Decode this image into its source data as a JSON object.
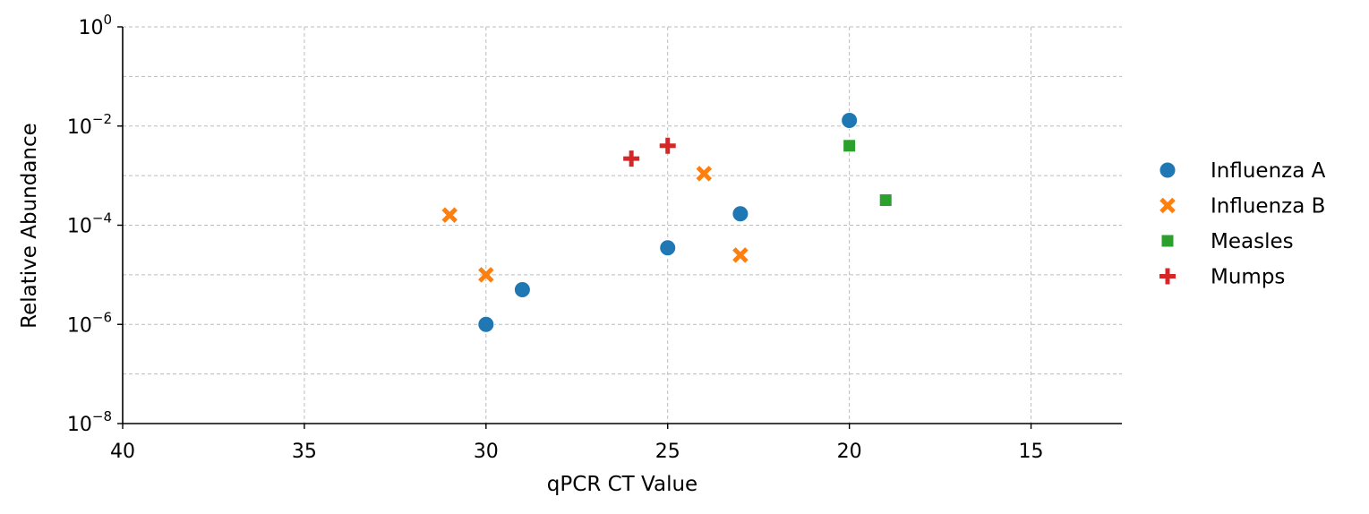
{
  "chart_data": {
    "type": "scatter",
    "title": "",
    "xlabel": "qPCR CT Value",
    "ylabel": "Relative Abundance",
    "x_inverted": true,
    "xlim": [
      40,
      12.5
    ],
    "ylim": [
      1e-08,
      1
    ],
    "y_scale": "log",
    "x_ticks": [
      40,
      35,
      30,
      25,
      20,
      15
    ],
    "y_ticks": [
      {
        "base": "10",
        "exp": "0",
        "value": 1
      },
      {
        "base": "10",
        "exp": "−2",
        "value": 0.01
      },
      {
        "base": "10",
        "exp": "−4",
        "value": 0.0001
      },
      {
        "base": "10",
        "exp": "−6",
        "value": 1e-06
      },
      {
        "base": "10",
        "exp": "−8",
        "value": 1e-08
      }
    ],
    "y_minor_gridlines": [
      0.1,
      0.001,
      1e-05,
      1e-07
    ],
    "grid": true,
    "legend_position": "outside-right",
    "series": [
      {
        "name": "Influenza A",
        "marker": "circle",
        "color": "#1f77b4",
        "points": [
          [
            30,
            1e-06
          ],
          [
            29,
            5e-06
          ],
          [
            25,
            3.5e-05
          ],
          [
            23,
            0.00017
          ],
          [
            20,
            0.013
          ]
        ]
      },
      {
        "name": "Influenza B",
        "marker": "x",
        "color": "#ff7f0e",
        "points": [
          [
            31,
            0.00016
          ],
          [
            30,
            1e-05
          ],
          [
            24,
            0.0011
          ],
          [
            23,
            2.5e-05
          ]
        ]
      },
      {
        "name": "Measles",
        "marker": "square",
        "color": "#2ca02c",
        "points": [
          [
            20,
            0.004
          ],
          [
            19,
            0.00032
          ]
        ]
      },
      {
        "name": "Mumps",
        "marker": "plus",
        "color": "#d62728",
        "points": [
          [
            26,
            0.0022
          ],
          [
            25,
            0.004
          ]
        ]
      }
    ]
  }
}
